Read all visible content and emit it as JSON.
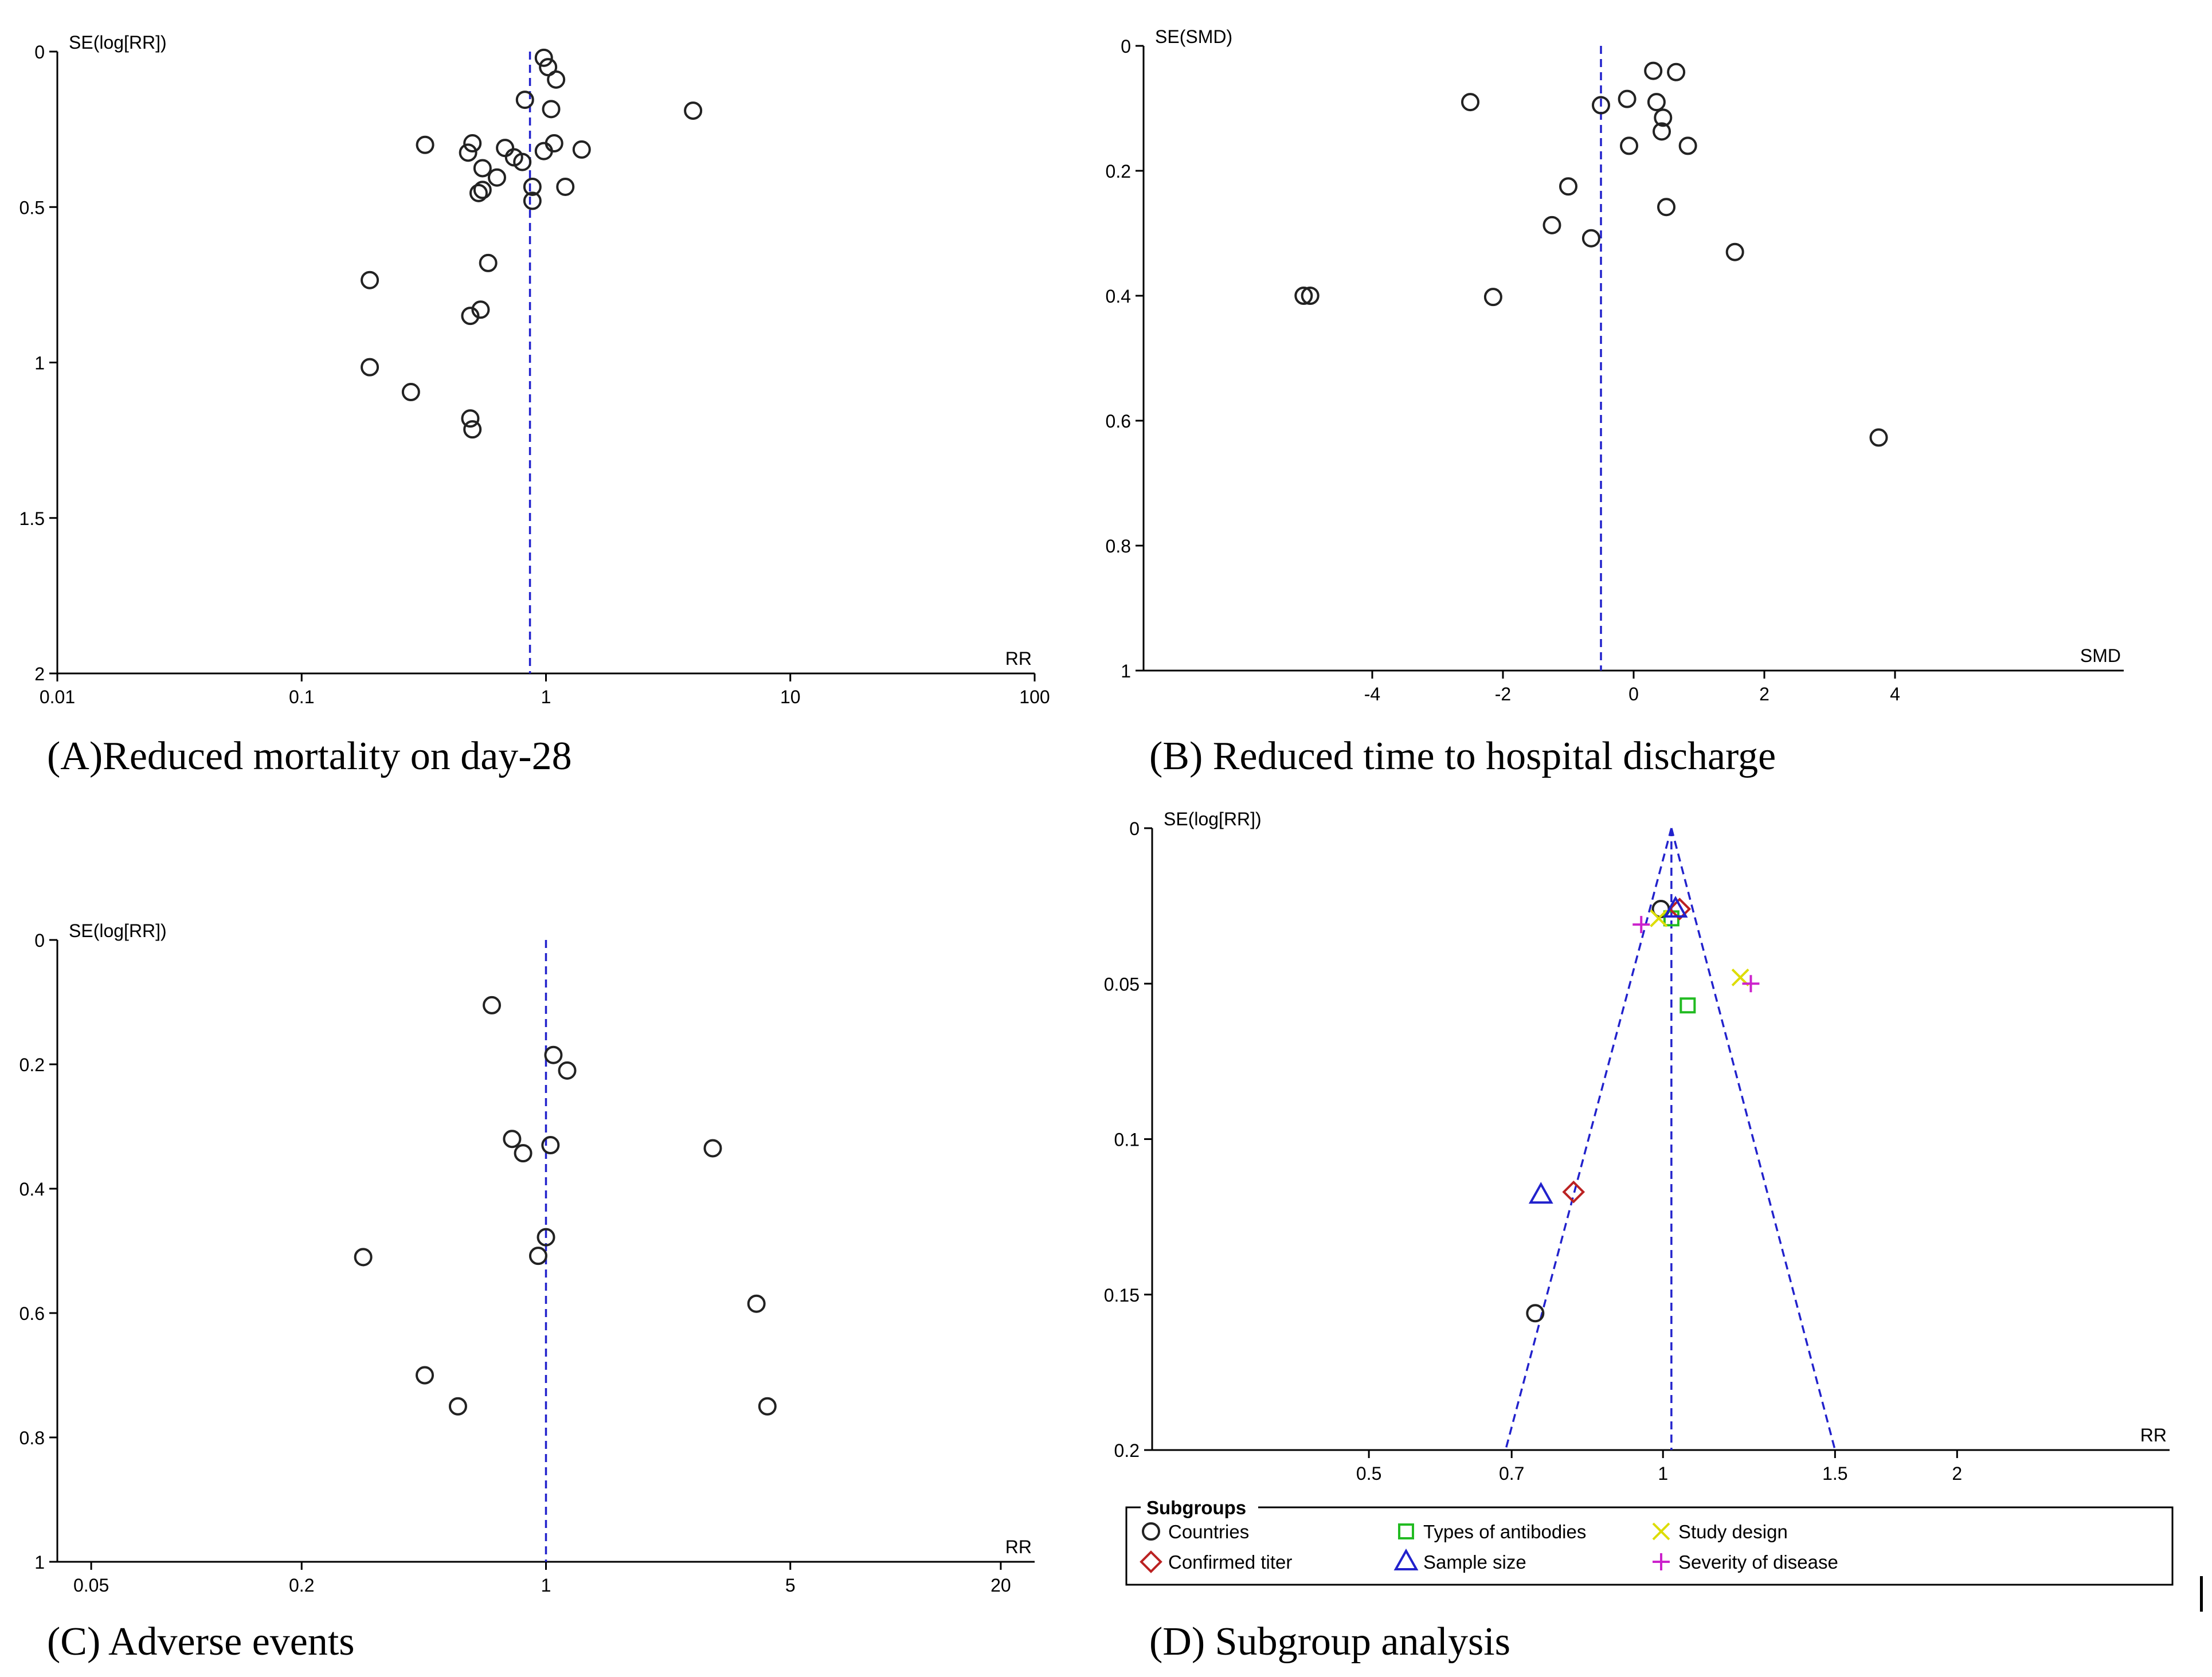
{
  "panels": [
    {
      "id": "A",
      "caption": "(A)Reduced mortality on day-28",
      "chart_data": {
        "type": "scatter",
        "chart_kind": "funnel plot",
        "xscale": "log",
        "xlabel": "RR",
        "ylabel": "SE(log[RR])",
        "xlim": [
          0.01,
          100
        ],
        "ylim": [
          0,
          2
        ],
        "y_inverted": true,
        "xticks": [
          0.01,
          0.1,
          1,
          10,
          100
        ],
        "xtick_labels": [
          "0.01",
          "0.1",
          "1",
          "10",
          "100"
        ],
        "yticks": [
          0,
          0.5,
          1,
          1.5,
          2
        ],
        "ytick_labels": [
          "0",
          "0.5",
          "1",
          "1.5",
          "2"
        ],
        "reference_line_x": 0.86,
        "series": [
          {
            "marker": "circle",
            "points": [
              {
                "x": 0.98,
                "y": 0.02
              },
              {
                "x": 1.02,
                "y": 0.05
              },
              {
                "x": 1.1,
                "y": 0.09
              },
              {
                "x": 0.82,
                "y": 0.155
              },
              {
                "x": 1.05,
                "y": 0.185
              },
              {
                "x": 4.0,
                "y": 0.19
              },
              {
                "x": 0.32,
                "y": 0.3
              },
              {
                "x": 0.5,
                "y": 0.295
              },
              {
                "x": 1.08,
                "y": 0.295
              },
              {
                "x": 0.48,
                "y": 0.325
              },
              {
                "x": 0.68,
                "y": 0.31
              },
              {
                "x": 1.4,
                "y": 0.315
              },
              {
                "x": 0.98,
                "y": 0.32
              },
              {
                "x": 0.74,
                "y": 0.34
              },
              {
                "x": 0.8,
                "y": 0.355
              },
              {
                "x": 0.55,
                "y": 0.375
              },
              {
                "x": 0.63,
                "y": 0.405
              },
              {
                "x": 0.88,
                "y": 0.435
              },
              {
                "x": 1.2,
                "y": 0.435
              },
              {
                "x": 0.55,
                "y": 0.445
              },
              {
                "x": 0.53,
                "y": 0.455
              },
              {
                "x": 0.88,
                "y": 0.48
              },
              {
                "x": 0.58,
                "y": 0.68
              },
              {
                "x": 0.19,
                "y": 0.735
              },
              {
                "x": 0.54,
                "y": 0.83
              },
              {
                "x": 0.49,
                "y": 0.85
              },
              {
                "x": 0.19,
                "y": 1.015
              },
              {
                "x": 0.28,
                "y": 1.095
              },
              {
                "x": 0.49,
                "y": 1.18
              },
              {
                "x": 0.5,
                "y": 1.215
              }
            ]
          }
        ]
      }
    },
    {
      "id": "B",
      "caption": "(B) Reduced time to hospital discharge",
      "chart_data": {
        "type": "scatter",
        "chart_kind": "funnel plot",
        "xscale": "linear",
        "xlabel": "SMD",
        "ylabel": "SE(SMD)",
        "xlim": [
          -7.5,
          7.5
        ],
        "ylim": [
          0,
          1
        ],
        "y_inverted": true,
        "xticks": [
          -4,
          -2,
          0,
          2,
          4
        ],
        "xtick_labels": [
          "-4",
          "-2",
          "0",
          "2",
          "4"
        ],
        "yticks": [
          0,
          0.2,
          0.4,
          0.6,
          0.8,
          1
        ],
        "ytick_labels": [
          "0",
          "0.2",
          "0.4",
          "0.6",
          "0.8",
          "1"
        ],
        "reference_line_x": -0.5,
        "series": [
          {
            "marker": "circle",
            "points": [
              {
                "x": 0.3,
                "y": 0.04
              },
              {
                "x": 0.65,
                "y": 0.042
              },
              {
                "x": -2.5,
                "y": 0.09
              },
              {
                "x": -0.5,
                "y": 0.095
              },
              {
                "x": -0.1,
                "y": 0.085
              },
              {
                "x": 0.35,
                "y": 0.09
              },
              {
                "x": 0.45,
                "y": 0.115
              },
              {
                "x": 0.43,
                "y": 0.137
              },
              {
                "x": -0.07,
                "y": 0.16
              },
              {
                "x": 0.83,
                "y": 0.16
              },
              {
                "x": -1.0,
                "y": 0.225
              },
              {
                "x": 0.5,
                "y": 0.258
              },
              {
                "x": -1.25,
                "y": 0.287
              },
              {
                "x": -0.65,
                "y": 0.308
              },
              {
                "x": 1.55,
                "y": 0.33
              },
              {
                "x": -5.05,
                "y": 0.4
              },
              {
                "x": -4.95,
                "y": 0.4
              },
              {
                "x": -2.15,
                "y": 0.402
              },
              {
                "x": 3.75,
                "y": 0.627
              }
            ]
          }
        ]
      }
    },
    {
      "id": "C",
      "caption": "(C) Adverse events",
      "chart_data": {
        "type": "scatter",
        "chart_kind": "funnel plot",
        "xscale": "log",
        "xlabel": "RR",
        "ylabel": "SE(log[RR])",
        "xlim": [
          0.04,
          25
        ],
        "ylim": [
          0,
          1
        ],
        "y_inverted": true,
        "xticks": [
          0.05,
          0.2,
          1,
          5,
          20
        ],
        "xtick_labels": [
          "0.05",
          "0.2",
          "1",
          "5",
          "20"
        ],
        "yticks": [
          0,
          0.2,
          0.4,
          0.6,
          0.8,
          1
        ],
        "ytick_labels": [
          "0",
          "0.2",
          "0.4",
          "0.6",
          "0.8",
          "1"
        ],
        "reference_line_x": 1.0,
        "series": [
          {
            "marker": "circle",
            "points": [
              {
                "x": 0.7,
                "y": 0.105
              },
              {
                "x": 1.05,
                "y": 0.185
              },
              {
                "x": 1.15,
                "y": 0.21
              },
              {
                "x": 0.8,
                "y": 0.32
              },
              {
                "x": 1.03,
                "y": 0.33
              },
              {
                "x": 0.86,
                "y": 0.343
              },
              {
                "x": 3.0,
                "y": 0.335
              },
              {
                "x": 1.0,
                "y": 0.478
              },
              {
                "x": 0.95,
                "y": 0.508
              },
              {
                "x": 0.3,
                "y": 0.51
              },
              {
                "x": 4.0,
                "y": 0.585
              },
              {
                "x": 0.45,
                "y": 0.7
              },
              {
                "x": 0.56,
                "y": 0.75
              },
              {
                "x": 4.3,
                "y": 0.75
              }
            ]
          }
        ]
      }
    },
    {
      "id": "D",
      "caption": "(D) Subgroup analysis",
      "chart_data": {
        "type": "scatter",
        "chart_kind": "funnel plot",
        "xscale": "log",
        "xlabel": "RR",
        "ylabel": "SE(log[RR])",
        "xlim": [
          0.3,
          3.3
        ],
        "ylim": [
          0,
          0.2
        ],
        "y_inverted": true,
        "xticks": [
          0.5,
          0.7,
          1,
          1.5,
          2
        ],
        "xtick_labels": [
          "0.5",
          "0.7",
          "1",
          "1.5",
          "2"
        ],
        "yticks": [
          0,
          0.05,
          0.1,
          0.15,
          0.2
        ],
        "ytick_labels": [
          "0",
          "0.05",
          "0.1",
          "0.15",
          "0.2"
        ],
        "reference_line_x": 1.02,
        "funnel_limits": {
          "apex_x": 1.02,
          "base_left_x": 0.69,
          "base_right_x": 1.5
        },
        "legend_title": "Subgroups",
        "legend_placement": "bottom",
        "series": [
          {
            "name": "Countries",
            "marker": "circle",
            "color": "#222222",
            "points": [
              {
                "x": 0.995,
                "y": 0.026
              },
              {
                "x": 0.74,
                "y": 0.156
              }
            ]
          },
          {
            "name": "Types of antibodies",
            "marker": "square",
            "color": "#22bb22",
            "points": [
              {
                "x": 1.02,
                "y": 0.029
              },
              {
                "x": 1.06,
                "y": 0.057
              }
            ]
          },
          {
            "name": "Study design",
            "marker": "x",
            "color": "#dddd00",
            "points": [
              {
                "x": 0.99,
                "y": 0.029
              },
              {
                "x": 1.2,
                "y": 0.048
              }
            ]
          },
          {
            "name": "Confirmed titer",
            "marker": "diamond",
            "color": "#bb2222",
            "points": [
              {
                "x": 1.04,
                "y": 0.026
              },
              {
                "x": 0.81,
                "y": 0.117
              }
            ]
          },
          {
            "name": "Sample size",
            "marker": "triangle",
            "color": "#2222cc",
            "points": [
              {
                "x": 1.03,
                "y": 0.026
              },
              {
                "x": 0.75,
                "y": 0.118
              }
            ]
          },
          {
            "name": "Severity of disease",
            "marker": "plus",
            "color": "#cc22cc",
            "points": [
              {
                "x": 0.95,
                "y": 0.031
              },
              {
                "x": 1.23,
                "y": 0.05
              }
            ]
          }
        ]
      }
    }
  ],
  "colors": {
    "axis": "#000000",
    "reference_line": "#2222cc",
    "marker": "#222222"
  }
}
